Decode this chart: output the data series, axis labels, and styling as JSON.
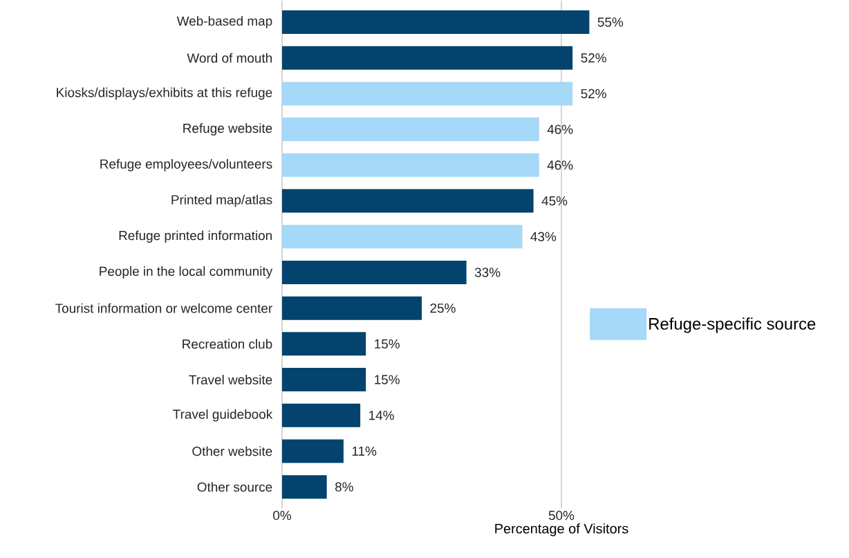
{
  "chart_data": {
    "type": "bar",
    "orientation": "horizontal",
    "categories": [
      "Web-based map",
      "Word of mouth",
      "Kiosks/displays/exhibits at this refuge",
      "Refuge website",
      "Refuge employees/volunteers",
      "Printed map/atlas",
      "Refuge printed information",
      "People in the local community",
      "Tourist information or welcome center",
      "Recreation club",
      "Travel website",
      "Travel guidebook",
      "Other website",
      "Other source"
    ],
    "series": [
      {
        "name": "Refuge-specific source",
        "color": "#a6d8f7",
        "values": [
          null,
          null,
          52,
          46,
          46,
          null,
          43,
          null,
          null,
          null,
          null,
          null,
          null,
          null
        ],
        "value_labels": [
          null,
          null,
          "52%",
          "46%",
          "46%",
          null,
          "43%",
          null,
          null,
          null,
          null,
          null,
          null,
          null
        ]
      },
      {
        "color": "#03436e",
        "values": [
          55,
          52,
          null,
          null,
          null,
          45,
          null,
          33,
          25,
          15,
          15,
          14,
          11,
          8
        ],
        "value_labels": [
          "55%",
          "52%",
          null,
          null,
          null,
          "45%",
          null,
          "33%",
          "25%",
          "15%",
          "15%",
          "14%",
          "11%",
          "8%"
        ]
      }
    ],
    "xlabel": "Percentage of Visitors",
    "xlim": [
      0,
      55
    ],
    "xticks": [
      {
        "value": 0,
        "label": "0%"
      },
      {
        "value": 50,
        "label": "50%"
      }
    ],
    "grid": "x",
    "legend": "right"
  }
}
